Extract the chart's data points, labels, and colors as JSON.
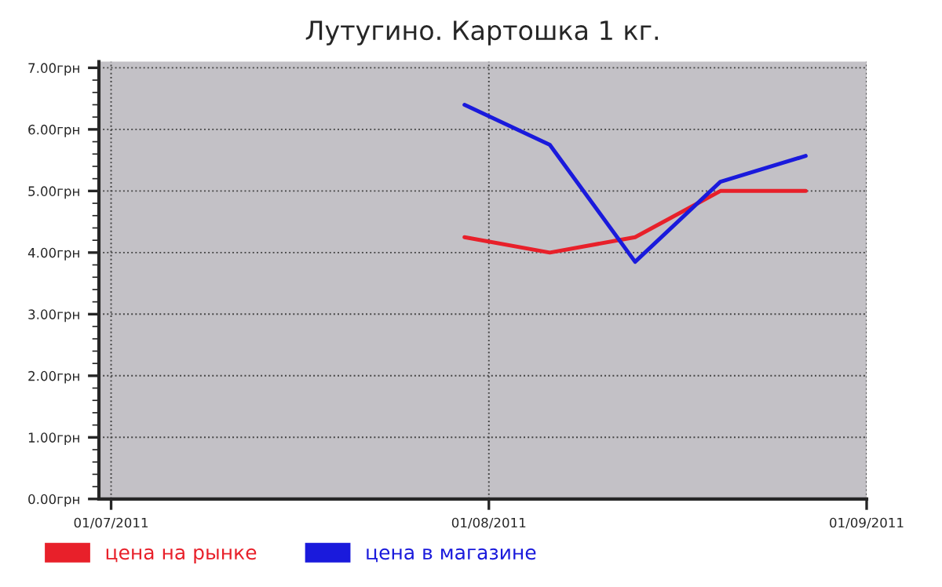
{
  "chart_data": {
    "type": "line",
    "title": "Лутугино. Картошка 1 кг.",
    "x": [
      "2011-07-30",
      "2011-08-06",
      "2011-08-13",
      "2011-08-20",
      "2011-08-27"
    ],
    "series": [
      {
        "name": "цена на рынке",
        "color": "#e8202a",
        "values": [
          4.25,
          4.0,
          4.25,
          5.0,
          5.0
        ]
      },
      {
        "name": "цена в магазине",
        "color": "#1a1adc",
        "values": [
          6.4,
          5.75,
          3.85,
          5.15,
          5.57
        ]
      }
    ],
    "xlim": [
      "2011-06-30",
      "2011-09-01"
    ],
    "xticks": [
      {
        "value": "2011-07-01",
        "label": "01/07/2011"
      },
      {
        "value": "2011-08-01",
        "label": "01/08/2011"
      },
      {
        "value": "2011-09-01",
        "label": "01/09/2011"
      }
    ],
    "ylim": [
      0,
      7.1
    ],
    "yticks": [
      {
        "value": 0,
        "label": "0.00грн"
      },
      {
        "value": 1,
        "label": "1.00грн"
      },
      {
        "value": 2,
        "label": "2.00грн"
      },
      {
        "value": 3,
        "label": "3.00грн"
      },
      {
        "value": 4,
        "label": "4.00грн"
      },
      {
        "value": 5,
        "label": "5.00грн"
      },
      {
        "value": 6,
        "label": "6.00грн"
      },
      {
        "value": 7,
        "label": "7.00грн"
      }
    ],
    "grid": true,
    "legend": "bottom left",
    "line_style": "solid",
    "marker": "none"
  }
}
